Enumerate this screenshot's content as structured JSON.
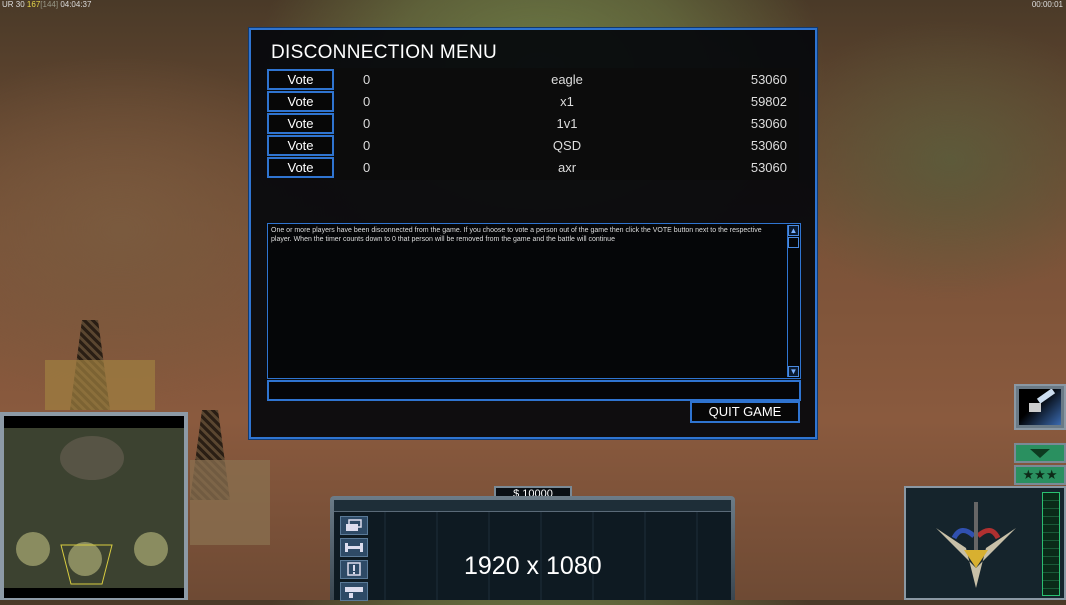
{
  "hud": {
    "top_left": {
      "prefix": "UR 30",
      "power": "167",
      "cap": "[144]",
      "time": "04:04:37"
    },
    "top_right": "00:00:01"
  },
  "dialog": {
    "title": "DISCONNECTION MENU",
    "vote_label": "Vote",
    "players": [
      {
        "votes": "0",
        "name": "eagle",
        "value": "53060"
      },
      {
        "votes": "0",
        "name": "x1",
        "value": "59802"
      },
      {
        "votes": "0",
        "name": "1v1",
        "value": "53060"
      },
      {
        "votes": "0",
        "name": "QSD",
        "value": "53060"
      },
      {
        "votes": "0",
        "name": "axr",
        "value": "53060"
      }
    ],
    "message": "One or more players have been disconnected from the game. If you choose to vote a person out of the game then click the VOTE button next to the respective player. When the timer counts down to 0 that person will be removed from the game and the battle will continue",
    "input_value": "",
    "quit_label": "QUIT GAME"
  },
  "command_bar": {
    "money": "$ 10000",
    "resolution_caption": "1920 x 1080",
    "side_icons": [
      "windows-icon",
      "wrench-icon",
      "alert-icon",
      "bar-icon"
    ]
  },
  "colors": {
    "accent": "#2f74d0"
  }
}
